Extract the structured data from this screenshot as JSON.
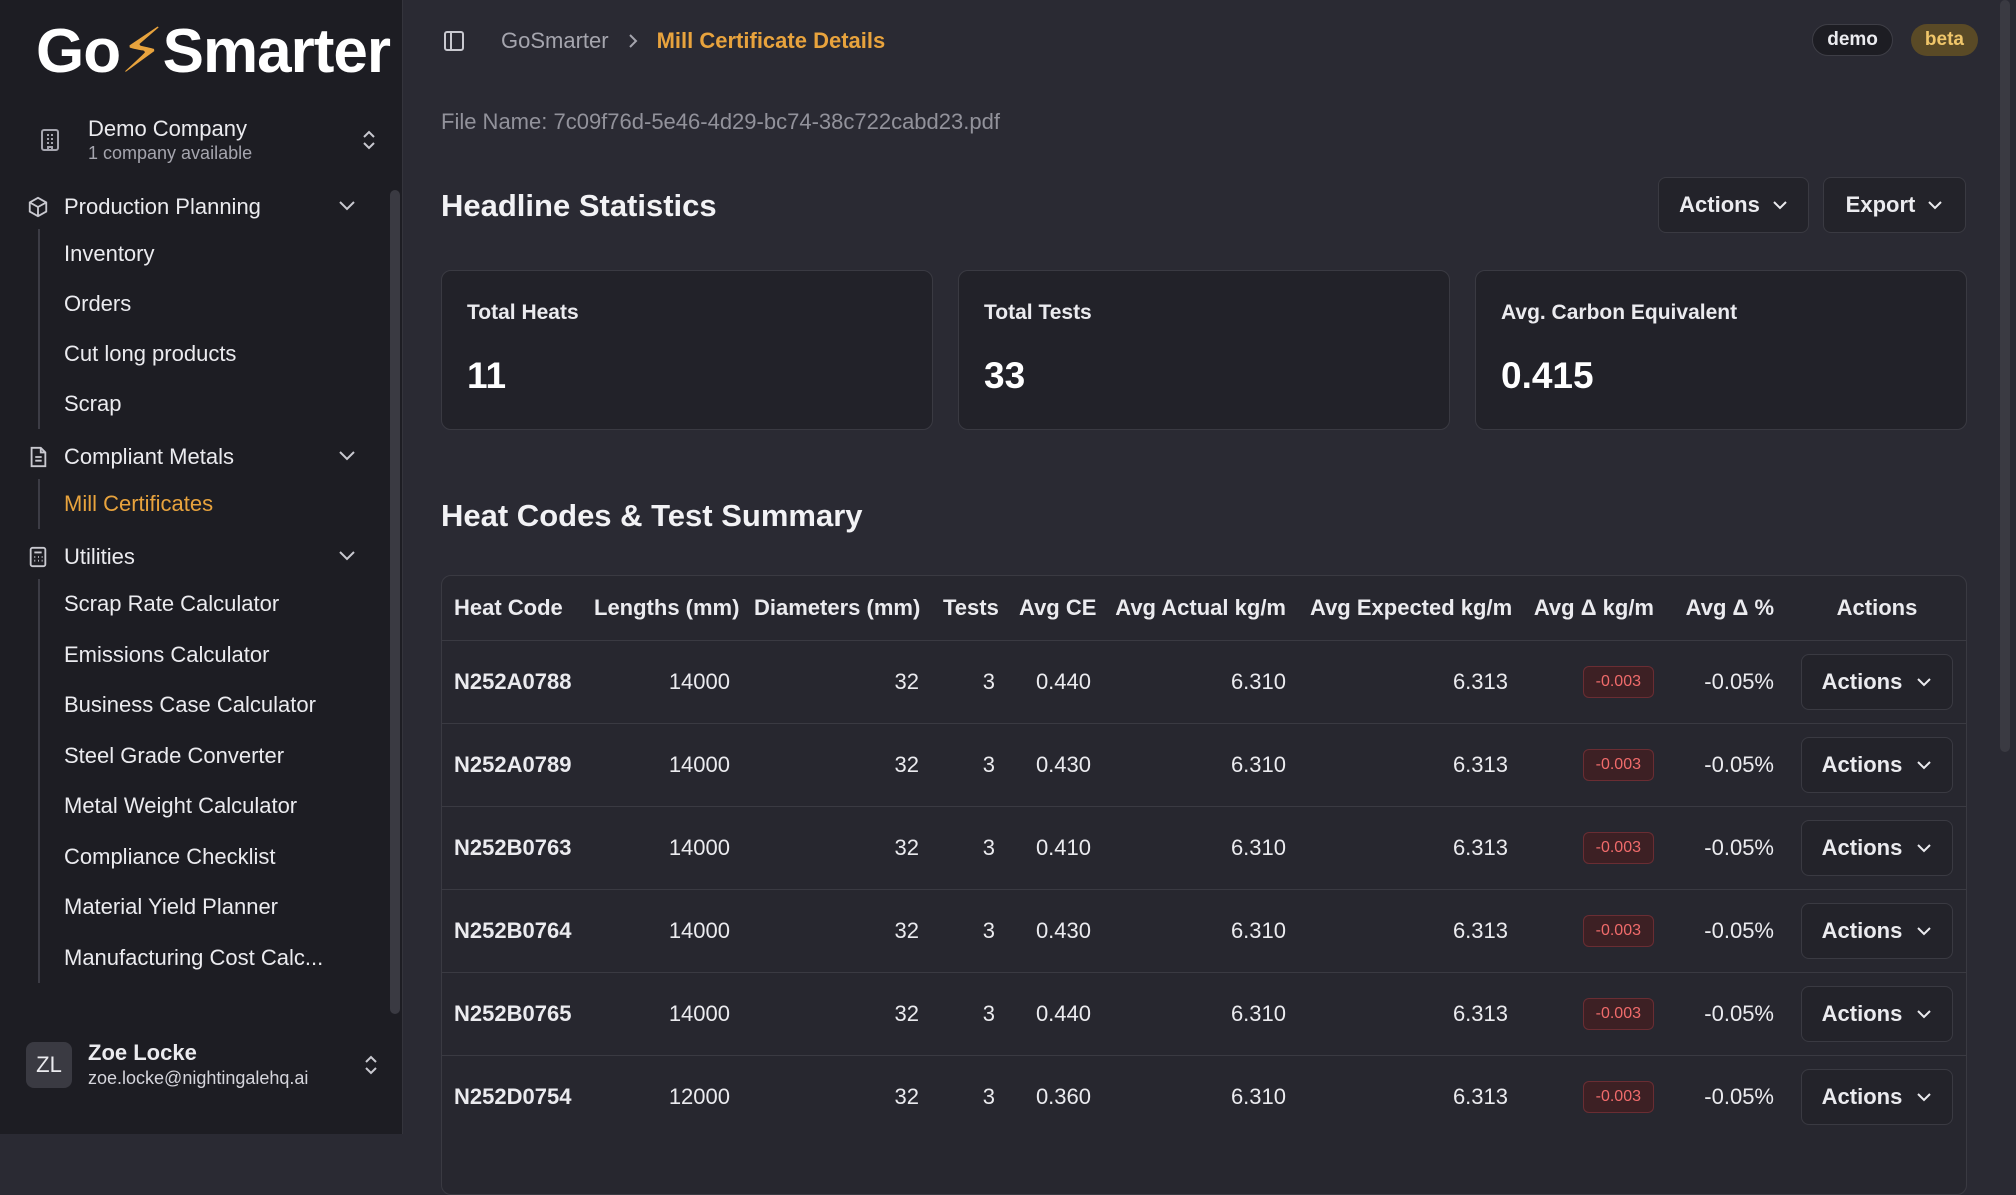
{
  "app": {
    "logo_left": "Go",
    "logo_bolt": "⚡",
    "logo_right": "Smarter"
  },
  "company": {
    "name": "Demo Company",
    "sub": "1 company available"
  },
  "nav": {
    "groups": [
      {
        "label": "Production Planning",
        "items": [
          "Inventory",
          "Orders",
          "Cut long products",
          "Scrap"
        ]
      },
      {
        "label": "Compliant Metals",
        "items": [
          "Mill Certificates"
        ]
      },
      {
        "label": "Utilities",
        "items": [
          "Scrap Rate Calculator",
          "Emissions Calculator",
          "Business Case Calculator",
          "Steel Grade Converter",
          "Metal Weight Calculator",
          "Compliance Checklist",
          "Material Yield Planner",
          "Manufacturing Cost Calc..."
        ]
      }
    ],
    "active_item": "Mill Certificates"
  },
  "user": {
    "initials": "ZL",
    "name": "Zoe Locke",
    "email": "zoe.locke@nightingalehq.ai"
  },
  "breadcrumb": {
    "home": "GoSmarter",
    "current": "Mill Certificate Details"
  },
  "badges": {
    "demo": "demo",
    "beta": "beta"
  },
  "file_name": "File Name: 7c09f76d-5e46-4d29-bc74-38c722cabd23.pdf",
  "headline": {
    "title": "Headline Statistics",
    "actions_label": "Actions",
    "export_label": "Export",
    "stats": [
      {
        "label": "Total Heats",
        "value": "11"
      },
      {
        "label": "Total Tests",
        "value": "33"
      },
      {
        "label": "Avg. Carbon Equivalent",
        "value": "0.415"
      }
    ]
  },
  "summary": {
    "title": "Heat Codes & Test Summary",
    "columns": [
      "Heat Code",
      "Lengths (mm)",
      "Diameters (mm)",
      "Tests",
      "Avg CE",
      "Avg Actual kg/m",
      "Avg Expected kg/m",
      "Avg Δ kg/m",
      "Avg Δ %",
      "Actions"
    ],
    "rows": [
      {
        "heat_code": "N252A0788",
        "length": "14000",
        "diameter": "32",
        "tests": "3",
        "avg_ce": "0.440",
        "actual": "6.310",
        "expected": "6.313",
        "delta": "-0.003",
        "delta_pct": "-0.05%",
        "action": "Actions"
      },
      {
        "heat_code": "N252A0789",
        "length": "14000",
        "diameter": "32",
        "tests": "3",
        "avg_ce": "0.430",
        "actual": "6.310",
        "expected": "6.313",
        "delta": "-0.003",
        "delta_pct": "-0.05%",
        "action": "Actions"
      },
      {
        "heat_code": "N252B0763",
        "length": "14000",
        "diameter": "32",
        "tests": "3",
        "avg_ce": "0.410",
        "actual": "6.310",
        "expected": "6.313",
        "delta": "-0.003",
        "delta_pct": "-0.05%",
        "action": "Actions"
      },
      {
        "heat_code": "N252B0764",
        "length": "14000",
        "diameter": "32",
        "tests": "3",
        "avg_ce": "0.430",
        "actual": "6.310",
        "expected": "6.313",
        "delta": "-0.003",
        "delta_pct": "-0.05%",
        "action": "Actions"
      },
      {
        "heat_code": "N252B0765",
        "length": "14000",
        "diameter": "32",
        "tests": "3",
        "avg_ce": "0.440",
        "actual": "6.310",
        "expected": "6.313",
        "delta": "-0.003",
        "delta_pct": "-0.05%",
        "action": "Actions"
      },
      {
        "heat_code": "N252D0754",
        "length": "12000",
        "diameter": "32",
        "tests": "3",
        "avg_ce": "0.360",
        "actual": "6.310",
        "expected": "6.313",
        "delta": "-0.003",
        "delta_pct": "-0.05%",
        "action": "Actions"
      }
    ]
  },
  "colors": {
    "accent": "#e8a33d",
    "background": "#2a2a33",
    "sidebar": "#1d1d23",
    "negative": "#f06b6b"
  }
}
